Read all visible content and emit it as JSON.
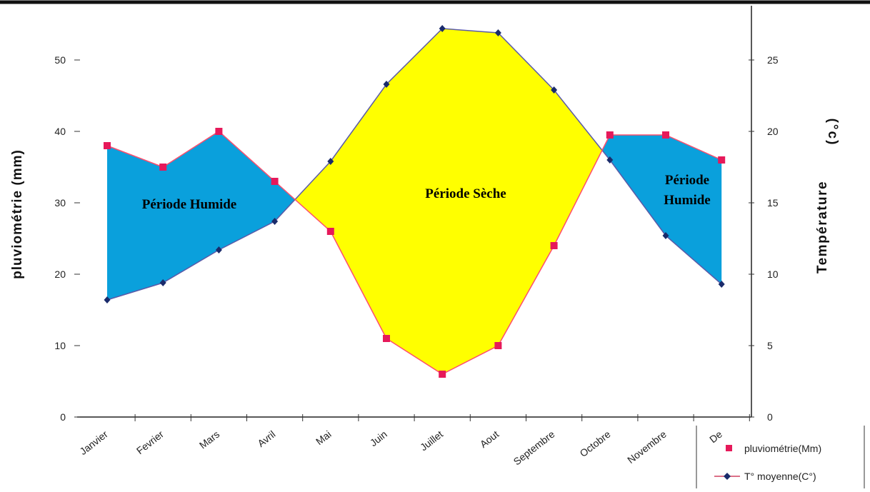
{
  "chart_data": {
    "type": "line",
    "categories": [
      "Janvier",
      "Fevrier",
      "Mars",
      "Avril",
      "Mai",
      "Juin",
      "Juillet",
      "Aout",
      "Septembre",
      "Octobre",
      "Novembre",
      "De"
    ],
    "series": [
      {
        "name": "pluviométrie(Mm)",
        "axis": "left",
        "marker": "square",
        "values": [
          38,
          35,
          40,
          33,
          26,
          11,
          6,
          10,
          24,
          39.5,
          39.5,
          36
        ]
      },
      {
        "name": "T° moyenne(C°)",
        "axis": "right",
        "marker": "diamond",
        "values": [
          8.2,
          9.4,
          11.7,
          13.7,
          17.9,
          23.3,
          27.2,
          26.9,
          22.9,
          18.0,
          12.7,
          9.3
        ]
      }
    ],
    "y_left": {
      "label": "pluviométrie (mm)",
      "range": [
        0,
        55
      ],
      "ticks": [
        "0",
        "10",
        "20",
        "30",
        "40",
        "50"
      ]
    },
    "y_right": {
      "label": "Température",
      "unit": "(°c)",
      "range": [
        0,
        27.5
      ],
      "ticks": [
        "0",
        "5",
        "10",
        "15",
        "20",
        "25"
      ]
    },
    "annotations": {
      "wet_left": [
        "Période Humide"
      ],
      "dry": [
        "Période Sèche"
      ],
      "wet_right": [
        "Période",
        "Humide"
      ]
    },
    "legend_position": "bottom-right",
    "grid": false
  },
  "colors": {
    "wet_fill": "#0aa0dc",
    "dry_fill": "#ffff00",
    "rain_marker": "#e6195a",
    "temp_marker": "#1a2b6b",
    "rain_line": "#ff4d6d",
    "temp_line": "#5a5aa8"
  }
}
